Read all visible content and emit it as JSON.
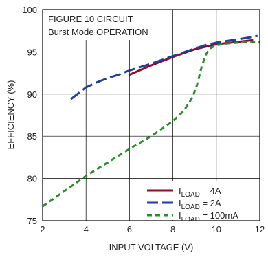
{
  "chart_data": {
    "type": "line",
    "xlabel": "INPUT VOLTAGE (V)",
    "ylabel": "EFFICIENCY (%)",
    "xlim": [
      2,
      12
    ],
    "ylim": [
      75,
      100
    ],
    "xticks": [
      2,
      4,
      6,
      8,
      10,
      12
    ],
    "yticks": [
      75,
      80,
      85,
      90,
      95,
      100
    ],
    "grid": true,
    "annotations": [
      "FIGURE 10 CIRCUIT",
      "Burst Mode OPERATION"
    ],
    "legend_position": "bottom-right",
    "series": [
      {
        "name_prefix": "I",
        "name_sub": "LOAD",
        "name_suffix": " = 4A",
        "color": "#8b0d2a",
        "dash": "solid",
        "x": [
          6.0,
          7.0,
          8.0,
          9.0,
          10.0,
          11.0,
          11.7
        ],
        "y": [
          92.3,
          93.4,
          94.4,
          95.3,
          95.9,
          96.2,
          96.4
        ]
      },
      {
        "name_prefix": "I",
        "name_sub": "LOAD",
        "name_suffix": " = 2A",
        "color": "#1f3f97",
        "dash": "long",
        "x": [
          3.3,
          3.6,
          4.0,
          4.5,
          5.0,
          5.5,
          6.0,
          7.0,
          8.0,
          9.0,
          9.5,
          10.0,
          10.5,
          11.0,
          11.5,
          11.9
        ],
        "y": [
          89.4,
          90.0,
          90.8,
          91.4,
          91.9,
          92.3,
          92.8,
          93.6,
          94.5,
          95.4,
          95.8,
          96.1,
          96.3,
          96.5,
          96.7,
          96.9
        ]
      },
      {
        "name_prefix": "I",
        "name_sub": "LOAD",
        "name_suffix": " = 100mA",
        "color": "#2e8b2e",
        "dash": "short",
        "x": [
          2.0,
          3.0,
          4.0,
          5.0,
          6.0,
          7.0,
          8.0,
          8.5,
          8.9,
          9.1,
          9.3,
          9.5,
          9.7,
          10.0,
          10.5,
          11.0,
          11.5,
          12.0
        ],
        "y": [
          76.7,
          78.5,
          80.3,
          81.9,
          83.5,
          85.0,
          86.8,
          88.0,
          89.6,
          91.0,
          93.0,
          94.6,
          95.4,
          95.8,
          96.0,
          96.1,
          96.2,
          96.2
        ]
      }
    ]
  }
}
